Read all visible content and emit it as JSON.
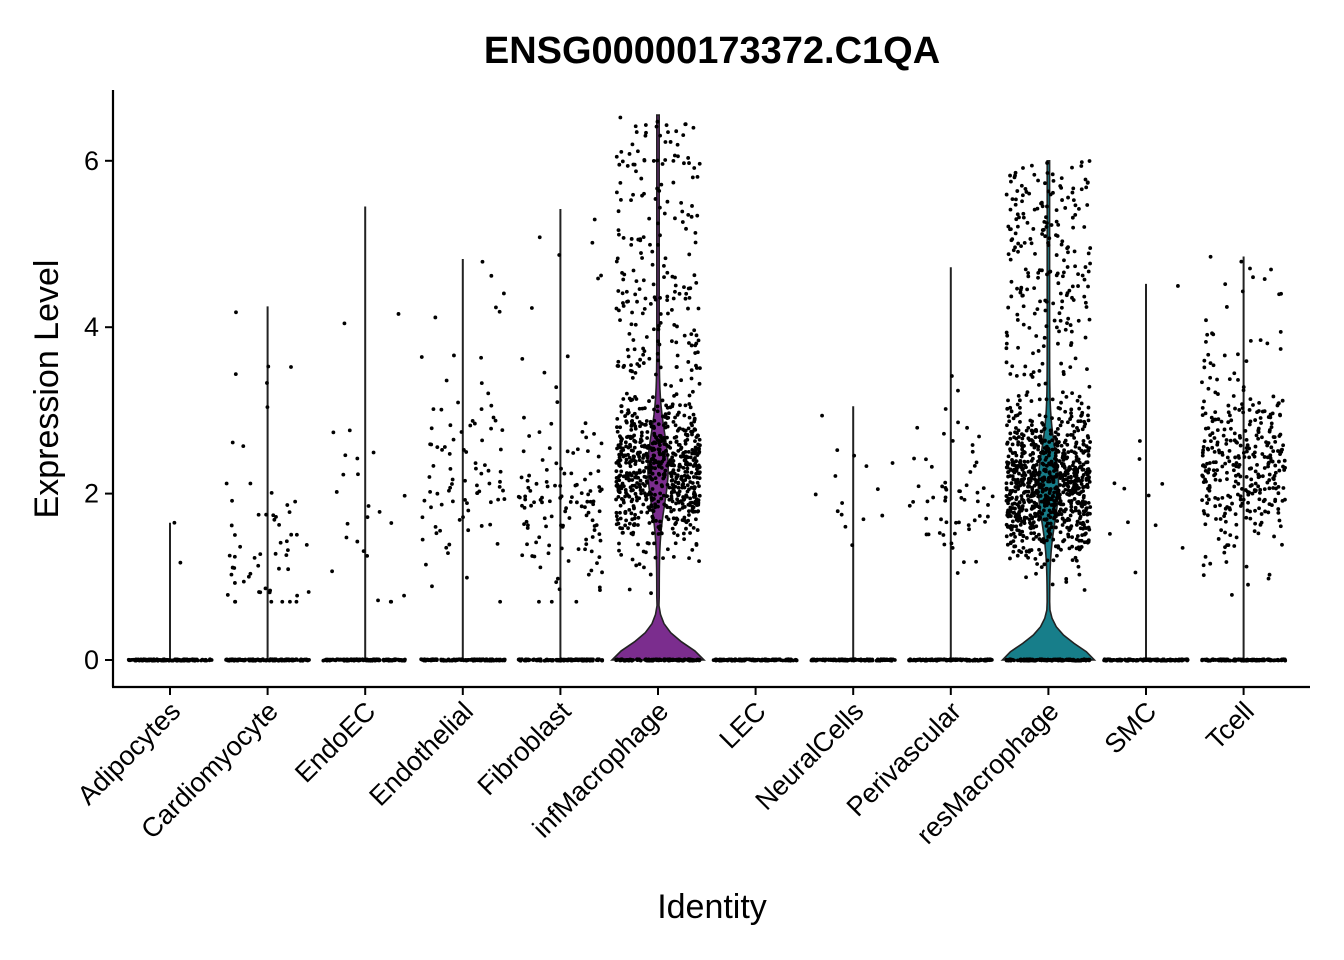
{
  "chart_data": {
    "type": "violin",
    "title": "ENSG00000173372.C1QA",
    "xlabel": "Identity",
    "ylabel": "Expression Level",
    "ylim": [
      -0.3,
      6.8
    ],
    "yticks": [
      0,
      2,
      4,
      6
    ],
    "grid": false,
    "legend": "none",
    "categories": [
      "Adipocytes",
      "Cardiomyocyte",
      "EndoEC",
      "Endothelial",
      "Fibroblast",
      "infMacrophage",
      "LEC",
      "NeuralCells",
      "Perivascular",
      "resMacrophage",
      "SMC",
      "Tcell"
    ],
    "series": [
      {
        "category": "Adipocytes",
        "max": 1.65,
        "expressing_cells": 2,
        "median_expressing": 1.5,
        "color": "#2b2b2b"
      },
      {
        "category": "Cardiomyocyte",
        "max": 4.25,
        "expressing_cells": 60,
        "median_expressing": 1.3,
        "color": "#2b2b2b"
      },
      {
        "category": "EndoEC",
        "max": 5.45,
        "expressing_cells": 25,
        "median_expressing": 1.7,
        "color": "#2b2b2b"
      },
      {
        "category": "Endothelial",
        "max": 4.82,
        "expressing_cells": 90,
        "median_expressing": 2.2,
        "color": "#2b2b2b"
      },
      {
        "category": "Fibroblast",
        "max": 5.42,
        "expressing_cells": 130,
        "median_expressing": 1.8,
        "color": "#2b2b2b"
      },
      {
        "category": "infMacrophage",
        "max": 6.55,
        "expressing_cells": 900,
        "median_expressing": 2.3,
        "color": "#7B2D8E"
      },
      {
        "category": "LEC",
        "max": 0,
        "expressing_cells": 0,
        "median_expressing": 0,
        "color": "#2b2b2b"
      },
      {
        "category": "NeuralCells",
        "max": 3.05,
        "expressing_cells": 15,
        "median_expressing": 2.0,
        "color": "#2b2b2b"
      },
      {
        "category": "Perivascular",
        "max": 4.72,
        "expressing_cells": 60,
        "median_expressing": 2.0,
        "color": "#2b2b2b"
      },
      {
        "category": "resMacrophage",
        "max": 6.0,
        "expressing_cells": 1100,
        "median_expressing": 2.1,
        "color": "#177E8A"
      },
      {
        "category": "SMC",
        "max": 4.52,
        "expressing_cells": 12,
        "median_expressing": 1.6,
        "color": "#2b2b2b"
      },
      {
        "category": "Tcell",
        "max": 4.85,
        "expressing_cells": 350,
        "median_expressing": 2.3,
        "color": "#2b2b2b"
      }
    ]
  }
}
